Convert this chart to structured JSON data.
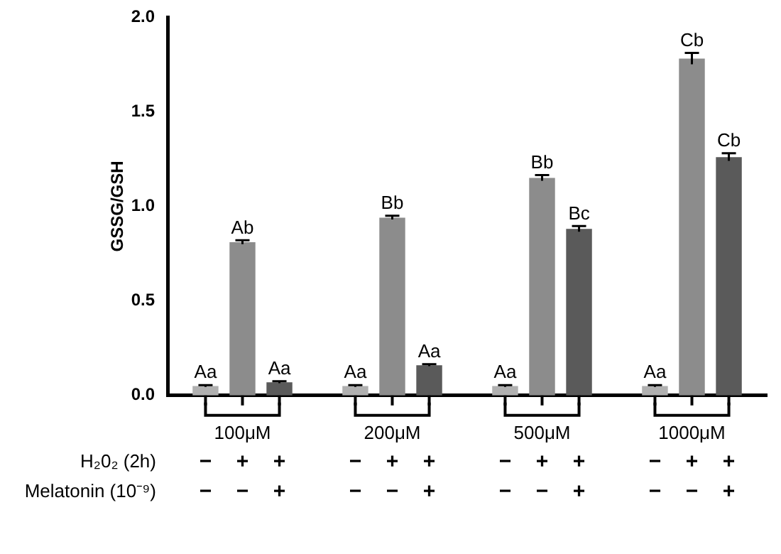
{
  "chart_data": {
    "type": "bar",
    "ylabel": "GSSG/GSH",
    "categories": [
      "100μM",
      "200μM",
      "500μM",
      "1000μM"
    ],
    "series": [
      {
        "color": "#b0b0b0",
        "values": [
          0.05,
          0.05,
          0.05,
          0.05
        ],
        "errors": [
          0.005,
          0.005,
          0.005,
          0.005
        ],
        "value_labels": [
          "Aa",
          "Aa",
          "Aa",
          "Aa"
        ]
      },
      {
        "color": "#8c8c8c",
        "values": [
          0.81,
          0.94,
          1.15,
          1.78
        ],
        "errors": [
          0.01,
          0.01,
          0.015,
          0.03
        ],
        "value_labels": [
          "Ab",
          "Bb",
          "Bb",
          "Cb"
        ]
      },
      {
        "color": "#5a5a5a",
        "values": [
          0.07,
          0.16,
          0.88,
          1.26
        ],
        "errors": [
          0.005,
          0.005,
          0.015,
          0.02
        ],
        "value_labels": [
          "Aa",
          "Aa",
          "Bc",
          "Cb"
        ]
      }
    ],
    "ylim": [
      0,
      2.0
    ],
    "yticks": [
      {
        "value": 0,
        "label": "0.0"
      },
      0.5,
      {
        "value": 1,
        "label": "1.0"
      },
      1.5,
      {
        "value": 2,
        "label": "2.0"
      }
    ],
    "grid": false,
    "legend": false,
    "annotations": [
      "H₂0₂ (2h)",
      "−",
      "+",
      "+",
      "−",
      "+",
      "+",
      "−",
      "+",
      "+",
      "−",
      "+",
      "+",
      "Melatonin (10⁻⁹)",
      "−",
      "−",
      "+",
      "−",
      "−",
      "+",
      "−",
      "−",
      "+",
      "−",
      "−",
      "+"
    ]
  }
}
